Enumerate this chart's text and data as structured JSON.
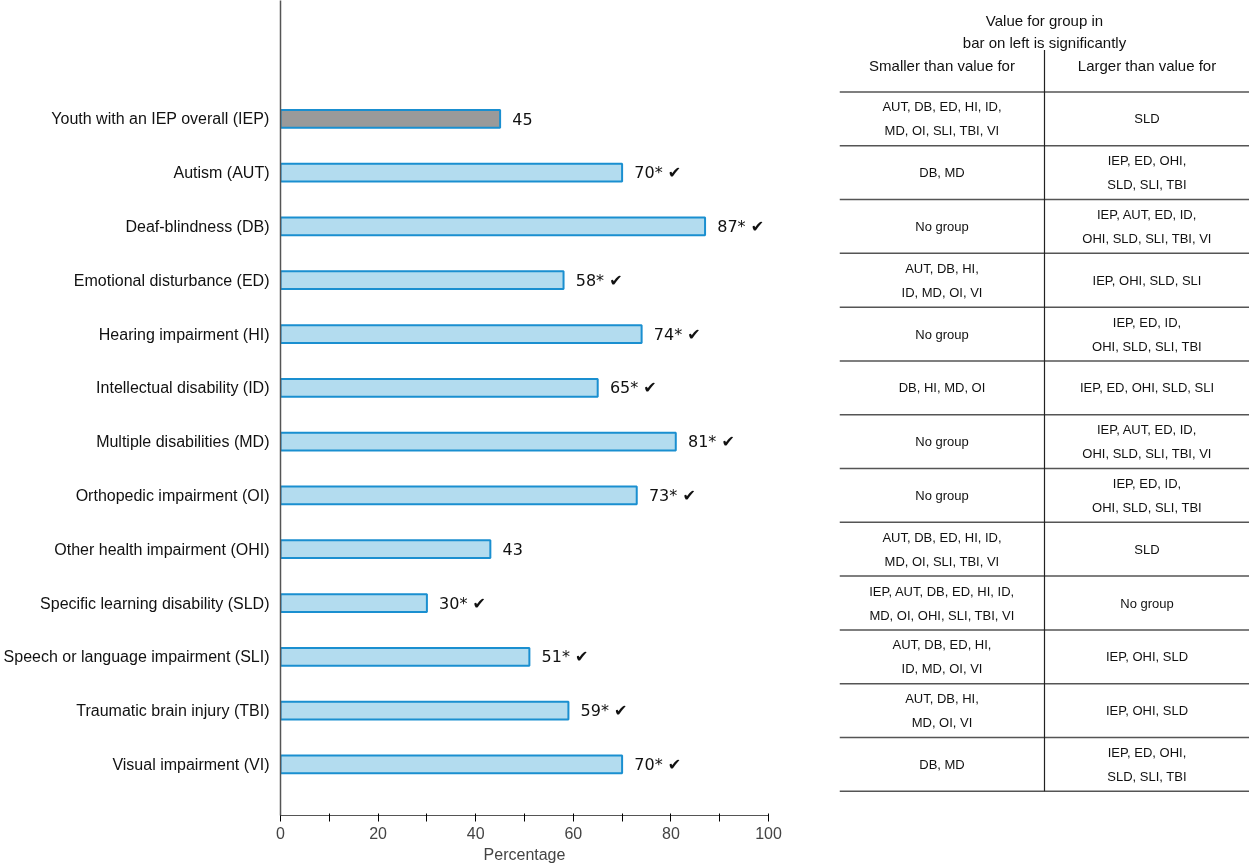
{
  "chart_data": [
    {
      "type": "bar",
      "orientation": "horizontal",
      "categories": [
        "Youth with an IEP overall (IEP)",
        "Autism (AUT)",
        "Deaf-blindness (DB)",
        "Emotional disturbance (ED)",
        "Hearing impairment (HI)",
        "Intellectual disability (ID)",
        "Multiple disabilities (MD)",
        "Orthopedic impairment (OI)",
        "Other health impairment (OHI)",
        "Specific learning disability (SLD)",
        "Speech or language impairment (SLI)",
        "Traumatic brain injury (TBI)",
        "Visual impairment (VI)"
      ],
      "values": [
        45,
        70,
        87,
        58,
        74,
        65,
        81,
        73,
        43,
        30,
        51,
        59,
        70
      ],
      "colors": [
        "#9a9a9a",
        "#b3dcef",
        "#b3dcef",
        "#b3dcef",
        "#b3dcef",
        "#b3dcef",
        "#b3dcef",
        "#b3dcef",
        "#b3dcef",
        "#b3dcef",
        "#b3dcef",
        "#b3dcef",
        "#b3dcef"
      ],
      "value_labels": [
        "45",
        "70* ✔",
        "87* ✔",
        "58* ✔",
        "74* ✔",
        "65* ✔",
        "81* ✔",
        "73* ✔",
        "43",
        "30* ✔",
        "51* ✔",
        "59* ✔",
        "70* ✔"
      ],
      "xlabel": "Percentage",
      "xlim": [
        0,
        100
      ],
      "xticks": [
        0,
        {
          "value": 10,
          "label": null
        },
        20,
        {
          "value": 30,
          "label": null
        },
        40,
        {
          "value": 50,
          "label": null
        },
        60,
        {
          "value": 70,
          "label": null
        },
        80,
        {
          "value": 90,
          "label": null
        },
        100
      ],
      "grid": false
    },
    {
      "type": "other",
      "title": "Value for group in\nbar on left is significantly",
      "annotations": [
        "Smaller than value for",
        "Larger than value for",
        "AUT, DB, ED, HI, ID,\nMD, OI, SLI, TBI, VI",
        "SLD",
        "DB, MD",
        "IEP, ED, OHI,\nSLD, SLI, TBI",
        "No group",
        "IEP, AUT, ED, ID,\nOHI, SLD, SLI, TBI, VI",
        "AUT, DB, HI,\nID, MD, OI, VI",
        "IEP, OHI, SLD, SLI",
        "No group",
        "IEP, ED, ID,\nOHI, SLD, SLI, TBI",
        "DB, HI, MD, OI",
        "IEP, ED, OHI, SLD, SLI",
        "No group",
        "IEP, AUT, ED, ID,\nOHI, SLD, SLI, TBI, VI",
        "No group",
        "IEP, ED, ID,\nOHI, SLD, SLI, TBI",
        "AUT, DB, ED, HI, ID,\nMD, OI, SLI, TBI, VI",
        "SLD",
        "IEP, AUT, DB, ED, HI, ID,\nMD, OI, OHI, SLI, TBI, VI",
        "No group",
        "AUT, DB, ED, HI,\nID, MD, OI, VI",
        "IEP, OHI, SLD",
        "AUT, DB, HI,\nMD, OI, VI",
        "IEP, OHI, SLD",
        "DB, MD",
        "IEP, ED, OHI,\nSLD, SLI, TBI"
      ]
    }
  ]
}
